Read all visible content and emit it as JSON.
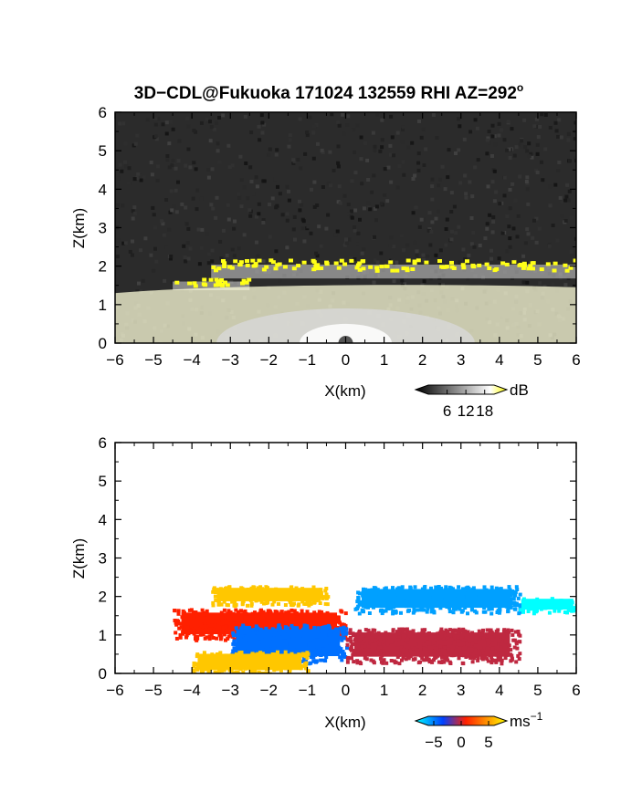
{
  "title": "3D−CDL@Fukuoka 171024 132559 RHI AZ=292",
  "title_degree": "o",
  "chart_data": [
    {
      "type": "heatmap",
      "quantity": "backscatter intensity",
      "xlabel": "X(km)",
      "ylabel": "Z(km)",
      "xlim": [
        -6,
        6
      ],
      "ylim": [
        0,
        6
      ],
      "x_ticks": [
        "−6",
        "−5",
        "−4",
        "−3",
        "−2",
        "−1",
        "0",
        "1",
        "2",
        "3",
        "4",
        "5",
        "6"
      ],
      "y_ticks": [
        "0",
        "1",
        "2",
        "3",
        "4",
        "5",
        "6"
      ],
      "colorbar": {
        "unit": "dB",
        "ticks": [
          "6",
          "12",
          "18"
        ],
        "range": [
          0,
          21
        ],
        "colors": [
          "#000000",
          "#ffffff",
          "#ffff00"
        ]
      },
      "features": [
        {
          "kind": "cloud-layer-upper",
          "x": [
            -3.5,
            6.0
          ],
          "z": [
            1.8,
            2.2
          ],
          "value_db": 20
        },
        {
          "kind": "cloud-layer-lower",
          "x": [
            -4.5,
            -2.5
          ],
          "z": [
            1.45,
            1.7
          ],
          "value_db": 20
        },
        {
          "kind": "boundary-layer-aerosol",
          "x": [
            -6.0,
            6.0
          ],
          "z": [
            0.0,
            1.5
          ],
          "value_db": 12
        }
      ]
    },
    {
      "type": "heatmap",
      "quantity": "radial velocity",
      "xlabel": "X(km)",
      "ylabel": "Z(km)",
      "xlim": [
        -6,
        6
      ],
      "ylim": [
        0,
        6
      ],
      "x_ticks": [
        "−6",
        "−5",
        "−4",
        "−3",
        "−2",
        "−1",
        "0",
        "1",
        "2",
        "3",
        "4",
        "5",
        "6"
      ],
      "y_ticks": [
        "0",
        "1",
        "2",
        "3",
        "4",
        "5",
        "6"
      ],
      "colorbar": {
        "unit": "ms",
        "unit_exp": "−1",
        "ticks": [
          "−5",
          "0",
          "5"
        ],
        "range": [
          -6,
          6
        ],
        "colors": [
          "#00ffff",
          "#0040ff",
          "#ff2000",
          "#ffff00"
        ]
      },
      "features": [
        {
          "kind": "westerly-upper",
          "x": [
            -3.5,
            -0.5
          ],
          "z": [
            1.8,
            2.3
          ],
          "value_ms": 5
        },
        {
          "kind": "easterly-upper",
          "x": [
            0.2,
            4.5
          ],
          "z": [
            1.6,
            2.3
          ],
          "value_ms": -4
        },
        {
          "kind": "thin-layer-far",
          "x": [
            4.5,
            6.0
          ],
          "z": [
            1.6,
            2.0
          ],
          "value_ms": -6
        },
        {
          "kind": "westerly-mid",
          "x": [
            -4.5,
            0.0
          ],
          "z": [
            0.9,
            1.7
          ],
          "value_ms": 2
        },
        {
          "kind": "easterly-mid",
          "x": [
            -3.0,
            0.0
          ],
          "z": [
            0.3,
            1.3
          ],
          "value_ms": -3
        },
        {
          "kind": "westerly-low",
          "x": [
            0.0,
            4.5
          ],
          "z": [
            0.3,
            1.2
          ],
          "value_ms": 1
        },
        {
          "kind": "surface-positive",
          "x": [
            -4.0,
            -1.0
          ],
          "z": [
            0.0,
            0.6
          ],
          "value_ms": 5
        }
      ]
    }
  ]
}
